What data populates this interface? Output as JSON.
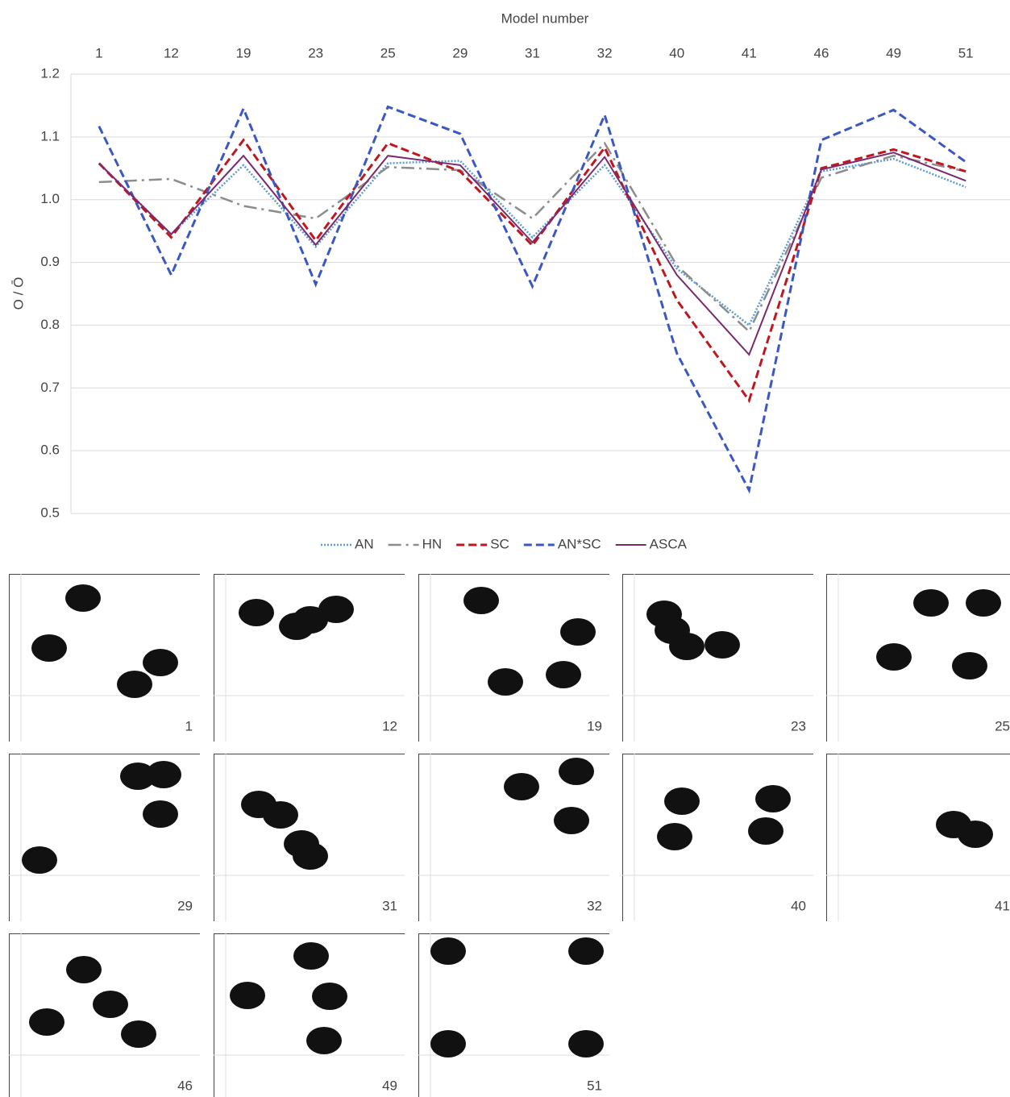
{
  "chart_data": {
    "type": "line",
    "x_label": "Model number",
    "y_label": "O / Ō",
    "categories": [
      "1",
      "12",
      "19",
      "23",
      "25",
      "29",
      "31",
      "32",
      "40",
      "41",
      "46",
      "49",
      "51"
    ],
    "ylim": [
      0.5,
      1.2
    ],
    "yticks": [
      0.5,
      0.6,
      0.7,
      0.8,
      0.9,
      {
        "value": 1,
        "label": "1.0"
      },
      1.1,
      1.2
    ],
    "grid": true,
    "legend": "bottom",
    "series": [
      {
        "name": "AN",
        "color": "#5b9bd5",
        "style": "dotted",
        "values": [
          1.058,
          0.945,
          1.055,
          0.925,
          1.058,
          1.062,
          0.94,
          1.055,
          0.89,
          0.8,
          1.045,
          1.065,
          1.02
        ]
      },
      {
        "name": "HN",
        "color": "#8c8c8c",
        "style": "dashdot",
        "values": [
          1.028,
          1.033,
          0.99,
          0.97,
          1.052,
          1.047,
          0.97,
          1.09,
          0.895,
          0.79,
          1.035,
          1.07,
          1.045
        ]
      },
      {
        "name": "SC",
        "color": "#c0161e",
        "style": "dashed",
        "values": [
          1.058,
          0.94,
          1.095,
          0.935,
          1.09,
          1.045,
          0.927,
          1.083,
          0.84,
          0.68,
          1.05,
          1.08,
          1.045
        ]
      },
      {
        "name": "AN*SC",
        "color": "#3a57c4",
        "style": "dashed",
        "values": [
          1.117,
          0.88,
          1.145,
          0.865,
          1.148,
          1.105,
          0.862,
          1.135,
          0.755,
          0.537,
          1.095,
          1.143,
          1.06
        ]
      },
      {
        "name": "ASCA",
        "color": "#7a2a6e",
        "style": "solid",
        "values": [
          1.058,
          0.945,
          1.07,
          0.928,
          1.07,
          1.055,
          0.932,
          1.068,
          0.88,
          0.753,
          1.048,
          1.075,
          1.03
        ]
      }
    ]
  },
  "panels": [
    "1",
    "12",
    "19",
    "23",
    "25",
    "29",
    "31",
    "32",
    "40",
    "41",
    "46",
    "49",
    "51"
  ]
}
